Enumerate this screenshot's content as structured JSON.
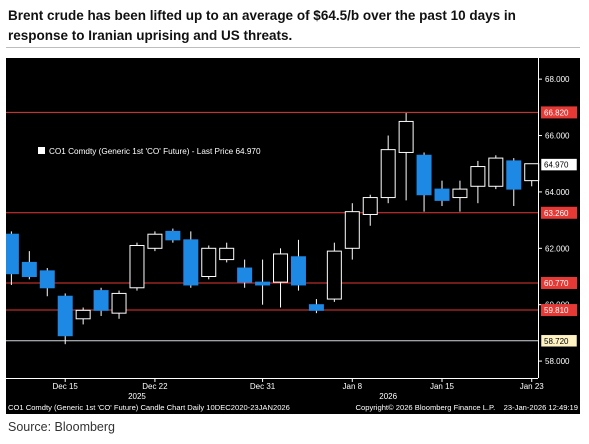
{
  "headline": "Brent crude has been lifted up to an average of $64.5/b over the past 10 days in response to Iranian uprising and US threats.",
  "source": "Source: Bloomberg",
  "chart_data": {
    "type": "candlestick",
    "title": "",
    "legend": "CO1 Comdty (Generic 1st 'CO' Future) - Last Price 64.970",
    "footer_left": "CO1 Comdty (Generic 1st 'CO' Future) Candle Chart Daily 10DEC2020-23JAN2026",
    "footer_right": "Copyright© 2026 Bloomberg Finance L.P.    23-Jan-2026 12:49:19",
    "ylim": [
      57.4,
      68.75
    ],
    "y_ticks": [
      "68.000",
      "66.000",
      "64.000",
      "62.000",
      "60.000",
      "58.000"
    ],
    "x_ticks": [
      "Dec 15",
      "Dec 22",
      "Dec 31",
      "Jan 8",
      "Jan 15",
      "Jan 23"
    ],
    "up_color": "#000000",
    "down_color": "#1e88e5",
    "hline_color": "#e53935",
    "last_line_color": "#cfd8dc",
    "hlines": [
      {
        "value": 66.82,
        "label": "66.820"
      },
      {
        "value": 63.26,
        "label": "63.260"
      },
      {
        "value": 60.77,
        "label": "60.770"
      },
      {
        "value": 59.81,
        "label": "59.810"
      }
    ],
    "price_tags": [
      {
        "value": 64.97,
        "label": "64.970",
        "style": "white"
      },
      {
        "value": 58.72,
        "label": "58.720",
        "style": "yellow"
      }
    ],
    "last_line": 58.72,
    "candles": [
      {
        "date": "Dec 12",
        "o": 62.5,
        "h": 62.6,
        "l": 60.7,
        "c": 61.1
      },
      {
        "date": "Dec 13",
        "o": 61.5,
        "h": 61.9,
        "l": 60.9,
        "c": 61.0
      },
      {
        "date": "Dec 14",
        "o": 61.2,
        "h": 61.3,
        "l": 60.3,
        "c": 60.6
      },
      {
        "date": "Dec 15",
        "o": 60.3,
        "h": 60.4,
        "l": 58.6,
        "c": 58.9
      },
      {
        "date": "Dec 16",
        "o": 59.5,
        "h": 59.9,
        "l": 59.3,
        "c": 59.8
      },
      {
        "date": "Dec 17",
        "o": 60.5,
        "h": 60.6,
        "l": 59.6,
        "c": 59.8
      },
      {
        "date": "Dec 18",
        "o": 59.7,
        "h": 60.5,
        "l": 59.5,
        "c": 60.4
      },
      {
        "date": "Dec 19",
        "o": 60.6,
        "h": 62.2,
        "l": 60.5,
        "c": 62.1
      },
      {
        "date": "Dec 22",
        "o": 62.0,
        "h": 62.6,
        "l": 61.9,
        "c": 62.5
      },
      {
        "date": "Dec 23",
        "o": 62.6,
        "h": 62.7,
        "l": 62.2,
        "c": 62.3
      },
      {
        "date": "Dec 24",
        "o": 62.3,
        "h": 62.6,
        "l": 60.6,
        "c": 60.7
      },
      {
        "date": "Dec 26",
        "o": 61.0,
        "h": 62.1,
        "l": 60.9,
        "c": 62.0
      },
      {
        "date": "Dec 29",
        "o": 61.6,
        "h": 62.2,
        "l": 61.5,
        "c": 62.0
      },
      {
        "date": "Dec 30",
        "o": 61.3,
        "h": 61.6,
        "l": 60.6,
        "c": 60.8
      },
      {
        "date": "Dec 31",
        "o": 60.8,
        "h": 61.6,
        "l": 60.0,
        "c": 60.7
      },
      {
        "date": "Jan 2",
        "o": 60.8,
        "h": 62.0,
        "l": 59.9,
        "c": 61.8
      },
      {
        "date": "Jan 5",
        "o": 61.7,
        "h": 62.3,
        "l": 60.5,
        "c": 60.7
      },
      {
        "date": "Jan 6",
        "o": 60.0,
        "h": 60.2,
        "l": 59.7,
        "c": 59.8
      },
      {
        "date": "Jan 7",
        "o": 60.2,
        "h": 62.2,
        "l": 60.1,
        "c": 61.9
      },
      {
        "date": "Jan 8",
        "o": 62.0,
        "h": 63.6,
        "l": 61.6,
        "c": 63.3
      },
      {
        "date": "Jan 9",
        "o": 63.2,
        "h": 63.9,
        "l": 62.8,
        "c": 63.8
      },
      {
        "date": "Jan 12",
        "o": 63.8,
        "h": 66.0,
        "l": 63.6,
        "c": 65.5
      },
      {
        "date": "Jan 13",
        "o": 65.4,
        "h": 66.8,
        "l": 63.7,
        "c": 66.5
      },
      {
        "date": "Jan 14",
        "o": 65.3,
        "h": 65.4,
        "l": 63.3,
        "c": 63.9
      },
      {
        "date": "Jan 15",
        "o": 64.1,
        "h": 64.4,
        "l": 63.5,
        "c": 63.7
      },
      {
        "date": "Jan 16",
        "o": 63.8,
        "h": 64.4,
        "l": 63.3,
        "c": 64.1
      },
      {
        "date": "Jan 19",
        "o": 64.2,
        "h": 65.1,
        "l": 63.6,
        "c": 64.9
      },
      {
        "date": "Jan 20",
        "o": 64.2,
        "h": 65.3,
        "l": 64.1,
        "c": 65.2
      },
      {
        "date": "Jan 21",
        "o": 65.1,
        "h": 65.2,
        "l": 63.5,
        "c": 64.1
      },
      {
        "date": "Jan 22",
        "o": 64.4,
        "h": 65.0,
        "l": 64.2,
        "c": 65.0
      }
    ],
    "tick_candle_index": [
      3,
      8,
      14,
      19,
      24,
      29
    ],
    "year_labels": [
      {
        "label": "2025",
        "candle_index": 7
      },
      {
        "label": "2026",
        "candle_index": 21
      }
    ]
  }
}
